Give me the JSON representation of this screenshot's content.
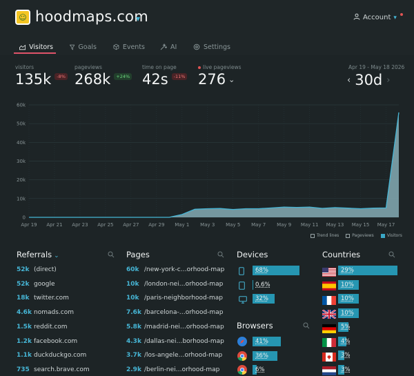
{
  "header": {
    "site_name": "hoodmaps.com",
    "account_label": "Account"
  },
  "tabs": [
    {
      "label": "Visitors"
    },
    {
      "label": "Goals"
    },
    {
      "label": "Events"
    },
    {
      "label": "AI"
    },
    {
      "label": "Settings"
    }
  ],
  "stats": {
    "visitors": {
      "label": "visitors",
      "value": "135k",
      "change": "-8%"
    },
    "pageviews": {
      "label": "pageviews",
      "value": "268k",
      "change": "+24%"
    },
    "time_on_page": {
      "label": "time on page",
      "value": "42s",
      "change": "-11%"
    },
    "live": {
      "label": "live pageviews",
      "value": "276"
    },
    "date_range": "Apr 19 - May 18 2026",
    "period": "30d"
  },
  "chart_data": {
    "type": "area",
    "x": [
      "Apr 19",
      "Apr 20",
      "Apr 21",
      "Apr 22",
      "Apr 23",
      "Apr 24",
      "Apr 25",
      "Apr 26",
      "Apr 27",
      "Apr 28",
      "Apr 29",
      "Apr 30",
      "May 1",
      "May 2",
      "May 3",
      "May 4",
      "May 5",
      "May 6",
      "May 7",
      "May 8",
      "May 9",
      "May 10",
      "May 11",
      "May 12",
      "May 13",
      "May 14",
      "May 15",
      "May 16",
      "May 17",
      "May 18"
    ],
    "x_tick_labels": [
      "Apr 19",
      "Apr 21",
      "Apr 23",
      "Apr 25",
      "Apr 27",
      "Apr 29",
      "May 1",
      "May 3",
      "May 5",
      "May 7",
      "May 9",
      "May 11",
      "May 13",
      "May 15",
      "May 17"
    ],
    "y_tick_labels": [
      "0",
      "10k",
      "20k",
      "30k",
      "40k",
      "50k",
      "60k"
    ],
    "ylim": [
      0,
      60000
    ],
    "series": [
      {
        "name": "Visitors",
        "values": [
          0,
          0,
          0,
          0,
          0,
          0,
          0,
          0,
          0,
          0,
          0,
          0,
          1500,
          4300,
          4600,
          4700,
          4200,
          4600,
          4600,
          5000,
          5500,
          5300,
          5500,
          4800,
          5200,
          4900,
          4600,
          4900,
          5000,
          56000
        ]
      }
    ],
    "legend": [
      "Trend lines",
      "Pageviews",
      "Visitors"
    ],
    "grid": true
  },
  "referrals": {
    "title": "Referrals",
    "items": [
      {
        "value": "52k",
        "label": "(direct)"
      },
      {
        "value": "52k",
        "label": "google"
      },
      {
        "value": "18k",
        "label": "twitter.com"
      },
      {
        "value": "4.6k",
        "label": "nomads.com"
      },
      {
        "value": "1.5k",
        "label": "reddit.com"
      },
      {
        "value": "1.2k",
        "label": "facebook.com"
      },
      {
        "value": "1.1k",
        "label": "duckduckgo.com"
      },
      {
        "value": "735",
        "label": "search.brave.com"
      }
    ]
  },
  "pages": {
    "title": "Pages",
    "items": [
      {
        "value": "60k",
        "label": "/new-york-c…orhood-map"
      },
      {
        "value": "10k",
        "label": "/london-nei…orhood-map"
      },
      {
        "value": "10k",
        "label": "/paris-neighborhood-map"
      },
      {
        "value": "7.6k",
        "label": "/barcelona-…orhood-map"
      },
      {
        "value": "5.8k",
        "label": "/madrid-nei…orhood-map"
      },
      {
        "value": "4.3k",
        "label": "/dallas-nei…borhood-map"
      },
      {
        "value": "3.7k",
        "label": "/los-angele…orhood-map"
      },
      {
        "value": "2.9k",
        "label": "/berlin-nei…orhood-map"
      }
    ]
  },
  "devices": {
    "title": "Devices",
    "items": [
      {
        "label": "68%",
        "share": 0.68,
        "icon": "mobile-icon"
      },
      {
        "label": "0,6%",
        "share": 0.006,
        "icon": "tablet-icon"
      },
      {
        "label": "32%",
        "share": 0.32,
        "icon": "desktop-icon"
      }
    ]
  },
  "browsers": {
    "title": "Browsers",
    "items": [
      {
        "label": "41%",
        "share": 0.41,
        "icon": "safari-icon"
      },
      {
        "label": "36%",
        "share": 0.36,
        "icon": "chrome-icon"
      },
      {
        "label": "6%",
        "share": 0.06,
        "icon": "chrome-icon"
      }
    ]
  },
  "countries": {
    "title": "Countries",
    "items": [
      {
        "label": "29%",
        "share": 0.29,
        "icon": "us-flag-icon"
      },
      {
        "label": "10%",
        "share": 0.1,
        "icon": "spain-flag-icon"
      },
      {
        "label": "10%",
        "share": 0.1,
        "icon": "france-flag-icon"
      },
      {
        "label": "10%",
        "share": 0.1,
        "icon": "uk-flag-icon"
      },
      {
        "label": "5%",
        "share": 0.05,
        "icon": "germany-flag-icon"
      },
      {
        "label": "4%",
        "share": 0.04,
        "icon": "italy-flag-icon"
      },
      {
        "label": "3%",
        "share": 0.03,
        "icon": "canada-flag-icon"
      },
      {
        "label": "3%",
        "share": 0.03,
        "icon": "netherlands-flag-icon"
      }
    ]
  },
  "colors": {
    "accent": "#46b6d6",
    "bar": "#2696b2",
    "area": "#7fa4ad",
    "active_tab": "#e0536a"
  }
}
